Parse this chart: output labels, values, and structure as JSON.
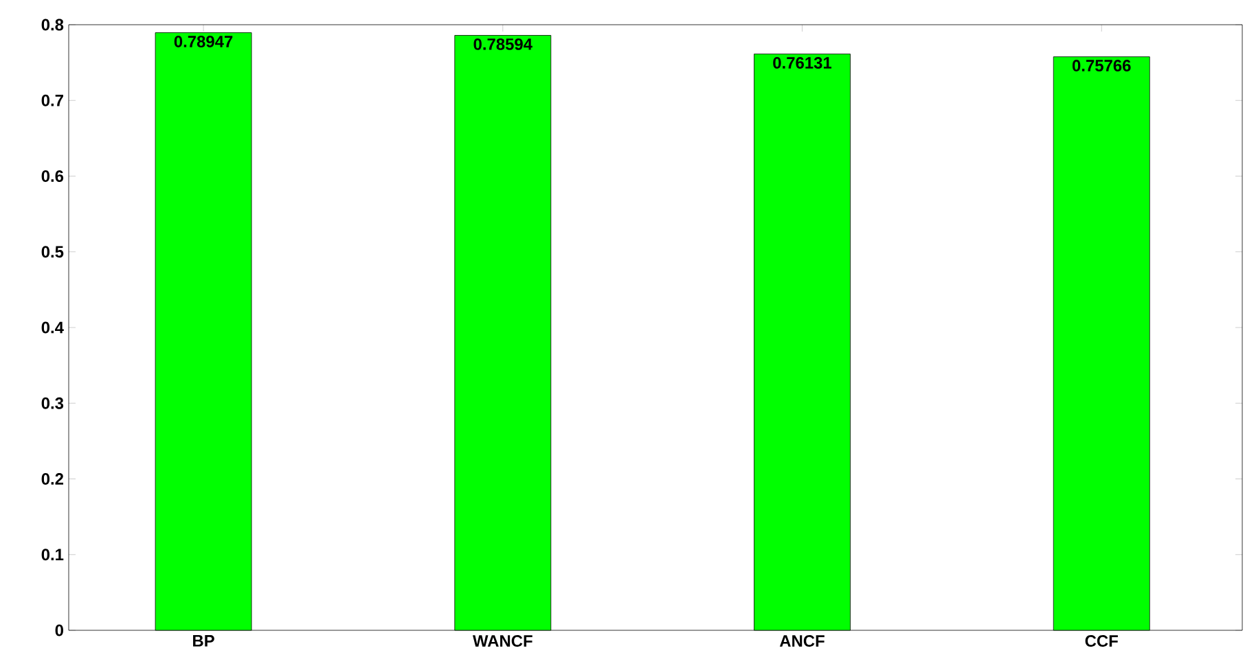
{
  "chart_data": {
    "type": "bar",
    "categories": [
      "BP",
      "WANCF",
      "ANCF",
      "CCF"
    ],
    "values": [
      0.78947,
      0.78594,
      0.76131,
      0.75766
    ],
    "color": "#00ff00",
    "ylim": [
      0,
      0.8
    ],
    "yticks": [
      0,
      0.1,
      0.2,
      0.3,
      0.4,
      0.5,
      0.6,
      0.7,
      0.8
    ],
    "data_labels": true
  }
}
